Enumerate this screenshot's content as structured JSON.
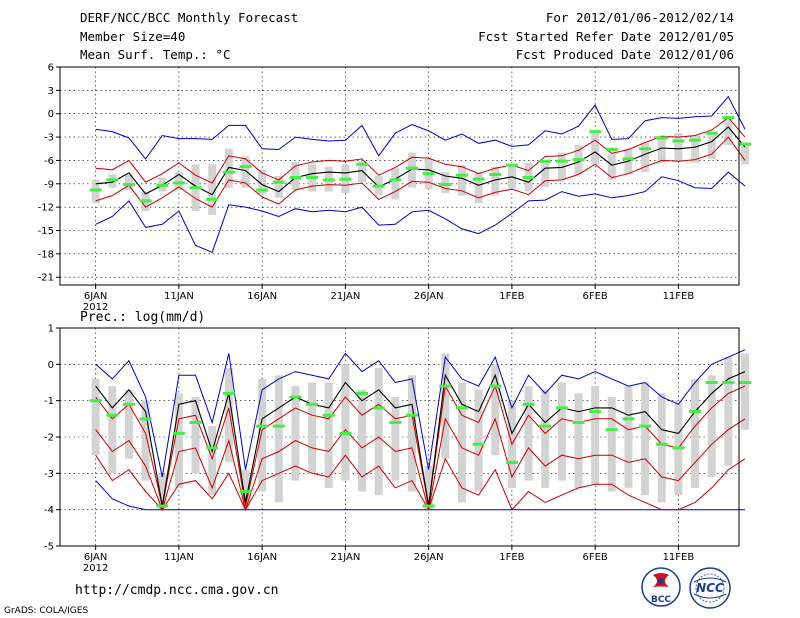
{
  "header": {
    "left": [
      "DERF/NCC/BCC Monthly Forecast",
      "Member Size=40",
      "Mean Surf. Temp.: °C"
    ],
    "right": [
      "For 2012/01/06-2012/02/14",
      "Fcst Started Refer Date 2012/01/05",
      "Fcst Produced Date 2012/01/06"
    ]
  },
  "footer": {
    "url": "http://cmdp.ncc.cma.gov.cn",
    "credit": "GrADS: COLA/IGES",
    "logo_left": "BCC",
    "logo_right": "NCC"
  },
  "colors": {
    "ensemble_mean": "#000000",
    "inner_band": "#cc0000",
    "outer_band": "#0000cc",
    "member_box": "#d3d3d3",
    "median_marker": "#44ee44"
  },
  "chart_data": [
    {
      "type": "box",
      "title": "Mean Surf. Temp.: °C",
      "ylim": [
        -22,
        6
      ],
      "yticks": [
        6,
        3,
        0,
        -3,
        -6,
        -9,
        -12,
        -15,
        -18,
        -21
      ],
      "xtick_labels": [
        "6JAN",
        "11JAN",
        "16JAN",
        "21JAN",
        "26JAN",
        "1FEB",
        "6FEB",
        "11FEB"
      ],
      "xtick_index": [
        0,
        5,
        10,
        15,
        20,
        25,
        30,
        35
      ],
      "year_label": "2012",
      "grid": true,
      "series": [
        {
          "name": "mean",
          "values": [
            -9,
            -8.8,
            -7.6,
            -10.3,
            -9.2,
            -7.8,
            -9.3,
            -10.4,
            -6.9,
            -7.3,
            -9.1,
            -10,
            -8.2,
            -7.7,
            -7.5,
            -7.6,
            -7.3,
            -9.4,
            -8.4,
            -7.1,
            -7.2,
            -8,
            -8.3,
            -9.2,
            -8.5,
            -8.1,
            -8.8,
            -7,
            -6.9,
            -6.2,
            -4.9,
            -6.6,
            -6.1,
            -5.2,
            -4.4,
            -4.5,
            -4.3,
            -3.6,
            -1.7,
            -4.3
          ]
        },
        {
          "name": "upper_red",
          "values": [
            -7,
            -7.2,
            -6,
            -8.8,
            -7.7,
            -6.3,
            -7.9,
            -8.9,
            -5.4,
            -5.8,
            -7.6,
            -8.5,
            -6.7,
            -6.2,
            -6,
            -6.1,
            -5.8,
            -7.9,
            -6.9,
            -5.6,
            -5.7,
            -6.5,
            -6.8,
            -7.7,
            -7,
            -6.6,
            -7.3,
            -5.5,
            -5.4,
            -4.7,
            -3.4,
            -5.1,
            -4.6,
            -3.7,
            -2.9,
            -3,
            -2.8,
            -2.1,
            -0.5,
            -3
          ]
        },
        {
          "name": "lower_red",
          "values": [
            -11.2,
            -10.5,
            -9.2,
            -12,
            -10.8,
            -9.4,
            -10.9,
            -12,
            -8.5,
            -8.9,
            -10.7,
            -11.6,
            -9.8,
            -9.3,
            -9.1,
            -9.2,
            -8.9,
            -11,
            -10,
            -8.7,
            -8.8,
            -9.6,
            -9.9,
            -10.8,
            -10.1,
            -9.7,
            -10.4,
            -8.6,
            -8.5,
            -7.8,
            -6.5,
            -8.2,
            -7.7,
            -6.8,
            -6,
            -6.1,
            -5.9,
            -5.2,
            -3,
            -6
          ]
        },
        {
          "name": "upper_blue",
          "values": [
            -2,
            -2.3,
            -3.1,
            -5.8,
            -2.8,
            -3.2,
            -3.2,
            -3.3,
            -1.5,
            -1.5,
            -4.5,
            -4.6,
            -3,
            -3.3,
            -3.5,
            -3.4,
            -1.5,
            -5.4,
            -2.5,
            -1.4,
            -2.2,
            -3.4,
            -2.6,
            -3.8,
            -3.4,
            -4.2,
            -4,
            -2.2,
            -2.6,
            -1.6,
            1.1,
            -3.3,
            -3.2,
            -0.9,
            -0.5,
            -0.6,
            -0.4,
            -0.3,
            2.2,
            -2
          ]
        },
        {
          "name": "lower_blue",
          "values": [
            -14.2,
            -13.2,
            -11.2,
            -14.6,
            -14.2,
            -12.5,
            -16.9,
            -17.8,
            -11.7,
            -12,
            -12.5,
            -13.2,
            -12.2,
            -12.6,
            -12.4,
            -12.6,
            -12,
            -14.3,
            -14.2,
            -12.6,
            -12.4,
            -13.5,
            -14.8,
            -15.4,
            -14.3,
            -12.8,
            -11.2,
            -11.1,
            -10,
            -10.6,
            -10.3,
            -10.8,
            -10.5,
            -10,
            -8.1,
            -8.6,
            -9.5,
            -9.6,
            -7.5,
            -9.3
          ]
        },
        {
          "name": "box_top",
          "values": [
            -8.5,
            -7.8,
            -7.8,
            -10,
            -8.2,
            -7.5,
            -6.5,
            -6.5,
            -4.5,
            -5.5,
            -7.2,
            -8,
            -6.2,
            -6.5,
            -6.8,
            -6.5,
            -6.1,
            -8,
            -7,
            -5,
            -5.8,
            -7.5,
            -6.6,
            -7.5,
            -6.8,
            -6.8,
            -6.3,
            -6,
            -5,
            -4,
            -2.4,
            -5.2,
            -4.5,
            -3.8,
            -2.8,
            -2.5,
            -2.8,
            -2.5,
            -0.3,
            -3.8
          ]
        },
        {
          "name": "box_bottom",
          "values": [
            -11.5,
            -9.5,
            -9.8,
            -12.5,
            -10,
            -9.8,
            -12.5,
            -13,
            -9.5,
            -9.5,
            -10.3,
            -10.8,
            -9.8,
            -10,
            -10,
            -10.2,
            -8.8,
            -10.5,
            -11,
            -9.5,
            -9.7,
            -10.2,
            -10.5,
            -11.5,
            -10.5,
            -9.6,
            -10,
            -9.4,
            -8.5,
            -7.8,
            -6.5,
            -8.5,
            -7.8,
            -7.5,
            -6.3,
            -6.2,
            -6.3,
            -5.8,
            -4,
            -6.5
          ]
        },
        {
          "name": "median",
          "values": [
            -9.8,
            -8.5,
            -9.1,
            -11.2,
            -9.2,
            -8.9,
            -9.5,
            -11,
            -7.5,
            -6.8,
            -9.8,
            -8.8,
            -8.2,
            -8.2,
            -8.5,
            -8.4,
            -6.5,
            -9.3,
            -8.5,
            -7,
            -7.7,
            -9.1,
            -7.9,
            -8.4,
            -7.8,
            -6.6,
            -8.2,
            -6.1,
            -6.1,
            -5.9,
            -2.3,
            -4.6,
            -5.8,
            -4.5,
            -3.1,
            -3.5,
            -3.4,
            -2.5,
            -0.5,
            -3.9
          ]
        }
      ]
    },
    {
      "type": "box",
      "title": "Prec.: log(mm/d)",
      "ylim": [
        -5,
        1
      ],
      "yticks": [
        1,
        0,
        -1,
        -2,
        -3,
        -4,
        -5
      ],
      "xtick_labels": [
        "6JAN",
        "11JAN",
        "16JAN",
        "21JAN",
        "26JAN",
        "1FEB",
        "6FEB",
        "11FEB"
      ],
      "xtick_index": [
        0,
        5,
        10,
        15,
        20,
        25,
        30,
        35
      ],
      "year_label": "2012",
      "grid": true,
      "series": [
        {
          "name": "mean",
          "values": [
            -0.6,
            -1.2,
            -0.7,
            -1.3,
            -3.9,
            -1.1,
            -1,
            -2.4,
            -0.8,
            -3.8,
            -1.5,
            -1.2,
            -0.9,
            -1.1,
            -1.2,
            -0.5,
            -1,
            -0.7,
            -1.2,
            -1.1,
            -3.9,
            -0.3,
            -1.1,
            -1.3,
            -0.3,
            -1.9,
            -1.1,
            -1.6,
            -1.2,
            -1.3,
            -1.2,
            -1.2,
            -1.4,
            -1.3,
            -1.8,
            -1.9,
            -1.3,
            -0.8,
            -0.4,
            -0.2
          ]
        },
        {
          "name": "upper_red",
          "values": [
            -0.9,
            -1.5,
            -1.1,
            -1.9,
            -3.9,
            -1.5,
            -1.4,
            -2.6,
            -1.2,
            -3.9,
            -1.8,
            -1.5,
            -1.2,
            -1.4,
            -1.5,
            -0.9,
            -1.4,
            -1.1,
            -1.5,
            -1.4,
            -3.9,
            -0.6,
            -1.4,
            -1.6,
            -0.6,
            -2.2,
            -1.4,
            -1.9,
            -1.5,
            -1.6,
            -1.5,
            -1.5,
            -1.8,
            -1.7,
            -2.2,
            -2.3,
            -1.7,
            -1.2,
            -0.8,
            -0.6
          ]
        },
        {
          "name": "lower_red",
          "values": [
            -1.8,
            -2.4,
            -2.1,
            -2.8,
            -4,
            -2.4,
            -2.3,
            -3.4,
            -2.1,
            -4,
            -2.6,
            -2.4,
            -2.1,
            -2.3,
            -2.4,
            -1.8,
            -2.3,
            -2,
            -2.4,
            -2.3,
            -4,
            -1.5,
            -2.3,
            -2.5,
            -1.5,
            -3.1,
            -2.3,
            -2.8,
            -2.5,
            -2.6,
            -2.5,
            -2.5,
            -2.7,
            -2.6,
            -3.1,
            -3.2,
            -2.7,
            -2.2,
            -1.8,
            -1.5
          ]
        },
        {
          "name": "lowest_red",
          "values": [
            -2.5,
            -3.2,
            -2.9,
            -3.5,
            -4,
            -3.3,
            -3.2,
            -3.7,
            -3,
            -4,
            -3.2,
            -3,
            -2.8,
            -3,
            -3.1,
            -2.5,
            -3.1,
            -2.8,
            -3.4,
            -3.2,
            -4,
            -2.6,
            -3.4,
            -3.6,
            -2.9,
            -4,
            -3.5,
            -3.8,
            -3.6,
            -3.4,
            -3.3,
            -3.3,
            -3.6,
            -3.8,
            -4,
            -4,
            -3.8,
            -3.4,
            -2.9,
            -2.6
          ]
        },
        {
          "name": "upper_blue",
          "values": [
            0,
            -0.4,
            0.1,
            -0.9,
            -3.1,
            -0.3,
            -0.3,
            -1.6,
            0.3,
            -2.9,
            -0.7,
            -0.4,
            -0.2,
            -0.3,
            -0.4,
            0.3,
            -0.2,
            0.1,
            -0.5,
            -0.4,
            -2.9,
            0.2,
            -0.4,
            -0.6,
            0.2,
            -1.2,
            -0.3,
            -0.8,
            -0.3,
            -0.4,
            -0.2,
            -0.4,
            -0.6,
            -0.5,
            -0.9,
            -1.1,
            -0.5,
            0,
            0.2,
            0.4
          ]
        },
        {
          "name": "lower_blue",
          "values": [
            -3.2,
            -3.7,
            -3.9,
            -4,
            -4,
            -4,
            -4,
            -4,
            -4,
            -4,
            -4,
            -4,
            -4,
            -4,
            -4,
            -4,
            -4,
            -4,
            -4,
            -4,
            -4,
            -4,
            -4,
            -4,
            -4,
            -4,
            -4,
            -4,
            -4,
            -4,
            -4,
            -4,
            -4,
            -4,
            -4,
            -4,
            -4,
            -4,
            -4,
            -4
          ]
        },
        {
          "name": "box_top",
          "values": [
            -0.4,
            -0.6,
            -0.7,
            -1,
            -3,
            -0.8,
            -0.9,
            -1.7,
            -0.1,
            -2.9,
            -0.4,
            -0.3,
            -0.6,
            -0.5,
            -0.5,
            0,
            -0.7,
            -0.1,
            -0.9,
            -0.3,
            -2.8,
            0.3,
            -0.5,
            -0.7,
            0,
            -1,
            -0.6,
            -0.7,
            -0.5,
            -0.8,
            -0.6,
            -0.9,
            -0.6,
            -0.5,
            -0.8,
            -1,
            -0.4,
            -0.3,
            0.2,
            0.3
          ]
        },
        {
          "name": "box_bottom",
          "values": [
            -2.5,
            -3,
            -2.6,
            -3.2,
            -4,
            -3.4,
            -3,
            -3.6,
            -2.7,
            -4,
            -3.5,
            -3.8,
            -3.2,
            -3,
            -3.4,
            -3.2,
            -3.5,
            -3.6,
            -3.2,
            -3.5,
            -4,
            -2.6,
            -3.8,
            -3.5,
            -2.5,
            -3.4,
            -3.2,
            -3.4,
            -3.2,
            -3.4,
            -3.3,
            -3.5,
            -3.4,
            -3.6,
            -3.8,
            -3.6,
            -3.4,
            -3.1,
            -2.8,
            -1.8
          ]
        },
        {
          "name": "median",
          "values": [
            -1,
            -1.4,
            -1.1,
            -1.5,
            -3.9,
            -1.9,
            -1.6,
            -2.3,
            -0.8,
            -3.5,
            -1.7,
            -1.7,
            -0.9,
            -1.1,
            -1.4,
            -1.9,
            -0.8,
            -1.2,
            -1.6,
            -1.4,
            -3.9,
            -0.6,
            -1.2,
            -2.2,
            -0.6,
            -2.7,
            -1.1,
            -1.7,
            -1.2,
            -1.6,
            -1.3,
            -1.8,
            -1.5,
            -1.7,
            -2.2,
            -2.3,
            -1.3,
            -0.5,
            -0.5,
            -0.5
          ]
        }
      ]
    }
  ]
}
